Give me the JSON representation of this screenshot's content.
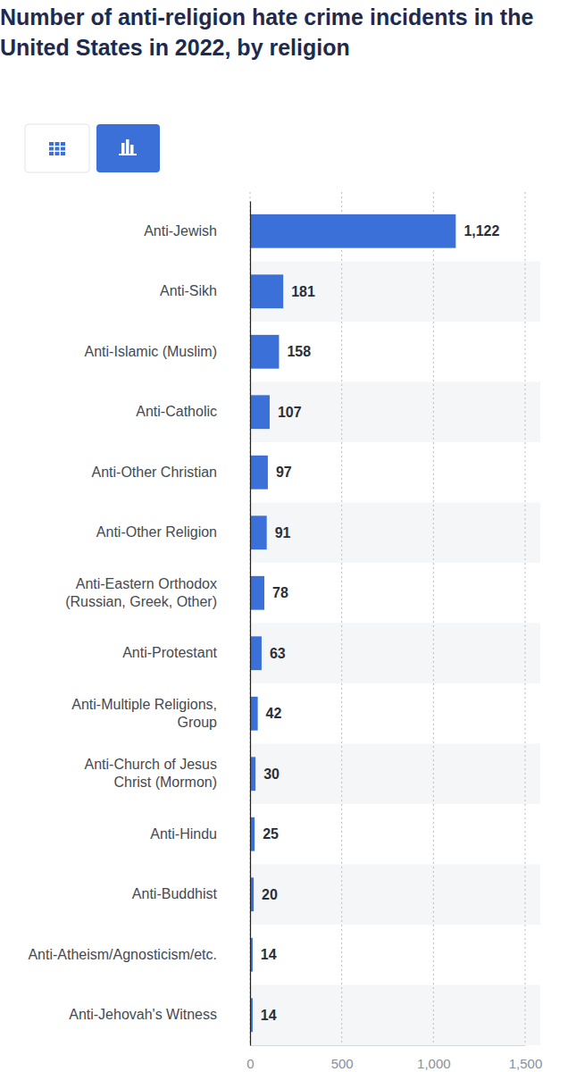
{
  "chart_data": {
    "type": "bar",
    "orientation": "horizontal",
    "title": "Number of anti-religion hate crime incidents in the United States in 2022, by religion",
    "categories": [
      "Anti-Jewish",
      "Anti-Sikh",
      "Anti-Islamic (Muslim)",
      "Anti-Catholic",
      "Anti-Other Christian",
      "Anti-Other Religion",
      "Anti-Eastern Orthodox (Russian, Greek, Other)",
      "Anti-Protestant",
      "Anti-Multiple Religions, Group",
      "Anti-Church of Jesus Christ (Mormon)",
      "Anti-Hindu",
      "Anti-Buddhist",
      "Anti-Atheism/Agnosticism/etc.",
      "Anti-Jehovah's Witness"
    ],
    "values": [
      1122,
      181,
      158,
      107,
      97,
      91,
      78,
      63,
      42,
      30,
      25,
      20,
      14,
      14
    ],
    "value_labels": [
      "1,122",
      "181",
      "158",
      "107",
      "97",
      "91",
      "78",
      "63",
      "42",
      "30",
      "25",
      "20",
      "14",
      "14"
    ],
    "color": "#3b70d8",
    "xlim": [
      0,
      1500
    ],
    "xticks": [
      0,
      500,
      {
        "value": 1000,
        "label": "1,000"
      },
      {
        "value": 1500,
        "label": "1,500"
      }
    ],
    "grid": true,
    "data_labels": true
  }
}
